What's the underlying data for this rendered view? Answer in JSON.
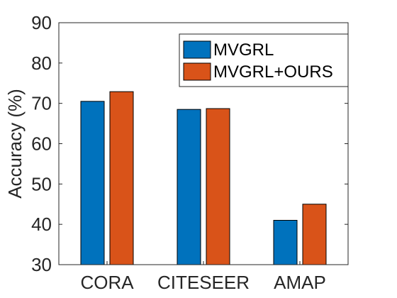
{
  "chart_data": {
    "type": "bar",
    "title": "",
    "xlabel": "",
    "ylabel": "Accuracy (%)",
    "ylim": [
      30,
      90
    ],
    "yticks": [
      30,
      40,
      50,
      60,
      70,
      80,
      90
    ],
    "categories": [
      "CORA",
      "CITESEER",
      "AMAP"
    ],
    "series": [
      {
        "name": "MVGRL",
        "values": [
          70.5,
          68.5,
          41.0
        ],
        "color": "#0072BD"
      },
      {
        "name": "MVGRL+OURS",
        "values": [
          72.9,
          68.7,
          45.0
        ],
        "color": "#D95319"
      }
    ],
    "grid": false,
    "legend_position": "top-right"
  }
}
